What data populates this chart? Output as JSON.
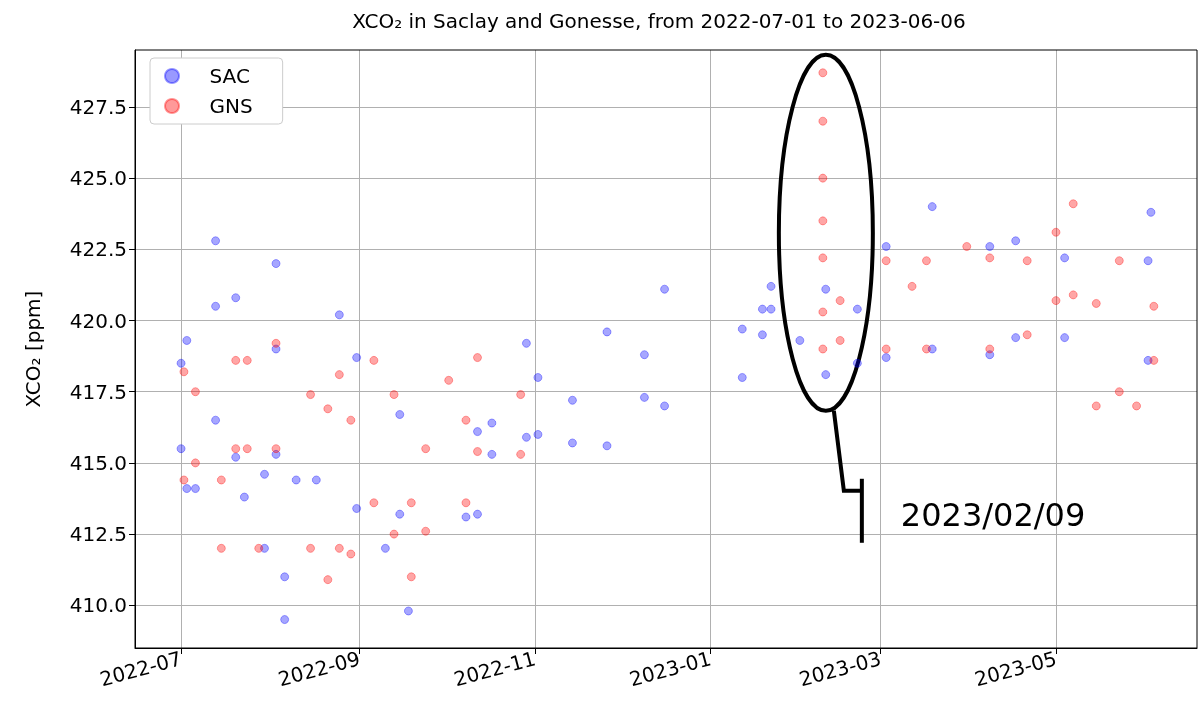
{
  "chart_data": {
    "type": "scatter",
    "title": "XCO₂ in Saclay and Gonesse, from 2022-07-01 to 2023-06-06",
    "ylabel": "XCO₂ [ppm]",
    "annotations": [
      "2023/02/09"
    ],
    "xlim": [
      "2022-06-15",
      "2023-06-19"
    ],
    "xticks": [
      "2022-07",
      "2022-09",
      "2022-11",
      "2023-01",
      "2023-03",
      "2023-05"
    ],
    "ylim": [
      408.5,
      429.5
    ],
    "yticks": [
      {
        "value": 410,
        "label": "410.0"
      },
      {
        "value": 412.5,
        "label": "412.5"
      },
      {
        "value": 415,
        "label": "415.0"
      },
      {
        "value": 417.5,
        "label": "417.5"
      },
      {
        "value": 420,
        "label": "420.0"
      },
      {
        "value": 422.5,
        "label": "422.5"
      },
      {
        "value": 425,
        "label": "425.0"
      },
      {
        "value": 427.5,
        "label": "427.5"
      }
    ],
    "grid": true,
    "legend": "top left",
    "marker": "circle",
    "series": [
      {
        "name": "SAC",
        "color": "#0000ff",
        "x": [
          "2022-07-01",
          "2022-07-01",
          "2022-07-03",
          "2022-07-03",
          "2022-07-06",
          "2022-07-13",
          "2022-07-13",
          "2022-07-13",
          "2022-07-20",
          "2022-07-20",
          "2022-07-23",
          "2022-07-30",
          "2022-07-30",
          "2022-08-03",
          "2022-08-03",
          "2022-08-03",
          "2022-08-06",
          "2022-08-06",
          "2022-08-10",
          "2022-08-17",
          "2022-08-25",
          "2022-08-31",
          "2022-08-31",
          "2022-09-10",
          "2022-09-15",
          "2022-09-15",
          "2022-09-18",
          "2022-10-08",
          "2022-10-12",
          "2022-10-12",
          "2022-10-17",
          "2022-10-17",
          "2022-10-29",
          "2022-10-29",
          "2022-11-02",
          "2022-11-02",
          "2022-11-14",
          "2022-11-14",
          "2022-11-26",
          "2022-11-26",
          "2022-12-09",
          "2022-12-09",
          "2022-12-16",
          "2022-12-16",
          "2023-01-12",
          "2023-01-12",
          "2023-01-19",
          "2023-01-19",
          "2023-01-22",
          "2023-01-22",
          "2023-02-01",
          "2023-02-10",
          "2023-02-10",
          "2023-02-21",
          "2023-02-21",
          "2023-03-03",
          "2023-03-03",
          "2023-03-19",
          "2023-03-19",
          "2023-04-08",
          "2023-04-08",
          "2023-04-17",
          "2023-04-17",
          "2023-05-04",
          "2023-05-04",
          "2023-06-02",
          "2023-06-02",
          "2023-06-03"
        ],
        "values": [
          415.5,
          418.5,
          419.3,
          414.1,
          414.1,
          422.8,
          420.5,
          416.5,
          420.8,
          415.2,
          413.8,
          414.6,
          412,
          422,
          419,
          415.3,
          409.5,
          411,
          414.4,
          414.4,
          420.2,
          418.7,
          413.4,
          412,
          416.7,
          413.2,
          409.8,
          413.1,
          416.1,
          413.2,
          416.4,
          415.3,
          419.2,
          415.9,
          418,
          416,
          417.2,
          415.7,
          419.6,
          415.6,
          418.8,
          417.3,
          421.1,
          417,
          419.7,
          418,
          420.4,
          419.5,
          421.2,
          420.4,
          419.3,
          421.1,
          418.1,
          420.4,
          418.5,
          422.6,
          418.7,
          424,
          419,
          422.6,
          418.8,
          422.8,
          419.4,
          422.2,
          419.4,
          422.1,
          418.6,
          423.8
        ]
      },
      {
        "name": "GNS",
        "color": "#ff0000",
        "x": [
          "2022-07-02",
          "2022-07-02",
          "2022-07-06",
          "2022-07-06",
          "2022-07-15",
          "2022-07-15",
          "2022-07-20",
          "2022-07-20",
          "2022-07-24",
          "2022-07-24",
          "2022-07-28",
          "2022-08-03",
          "2022-08-03",
          "2022-08-15",
          "2022-08-15",
          "2022-08-21",
          "2022-08-21",
          "2022-08-25",
          "2022-08-25",
          "2022-08-29",
          "2022-08-29",
          "2022-09-06",
          "2022-09-06",
          "2022-09-13",
          "2022-09-13",
          "2022-09-19",
          "2022-09-19",
          "2022-09-24",
          "2022-09-24",
          "2022-10-02",
          "2022-10-08",
          "2022-10-08",
          "2022-10-12",
          "2022-10-12",
          "2022-10-27",
          "2022-10-27",
          "2023-02-09",
          "2023-02-09",
          "2023-02-09",
          "2023-02-09",
          "2023-02-09",
          "2023-02-09",
          "2023-02-09",
          "2023-02-15",
          "2023-02-15",
          "2023-03-03",
          "2023-03-03",
          "2023-03-12",
          "2023-03-17",
          "2023-03-17",
          "2023-03-31",
          "2023-04-08",
          "2023-04-08",
          "2023-04-21",
          "2023-04-21",
          "2023-05-01",
          "2023-05-01",
          "2023-05-07",
          "2023-05-07",
          "2023-05-15",
          "2023-05-15",
          "2023-05-23",
          "2023-05-23",
          "2023-05-29",
          "2023-06-04",
          "2023-06-04"
        ],
        "values": [
          418.2,
          414.4,
          417.5,
          415,
          414.4,
          412,
          418.6,
          415.5,
          418.6,
          415.5,
          412,
          419.2,
          415.5,
          417.4,
          412,
          416.9,
          410.9,
          418.1,
          412,
          416.5,
          411.8,
          418.6,
          413.6,
          417.4,
          412.5,
          413.6,
          411,
          415.5,
          412.6,
          417.9,
          416.5,
          413.6,
          418.7,
          415.4,
          417.4,
          415.3,
          428.7,
          427,
          425,
          423.5,
          422.2,
          420.3,
          419,
          420.7,
          419.3,
          422.1,
          419,
          421.2,
          422.1,
          419,
          422.6,
          422.2,
          419,
          422.1,
          419.5,
          423.1,
          420.7,
          424.1,
          420.9,
          420.6,
          417,
          422.1,
          417.5,
          417,
          420.5,
          418.6
        ]
      }
    ]
  }
}
